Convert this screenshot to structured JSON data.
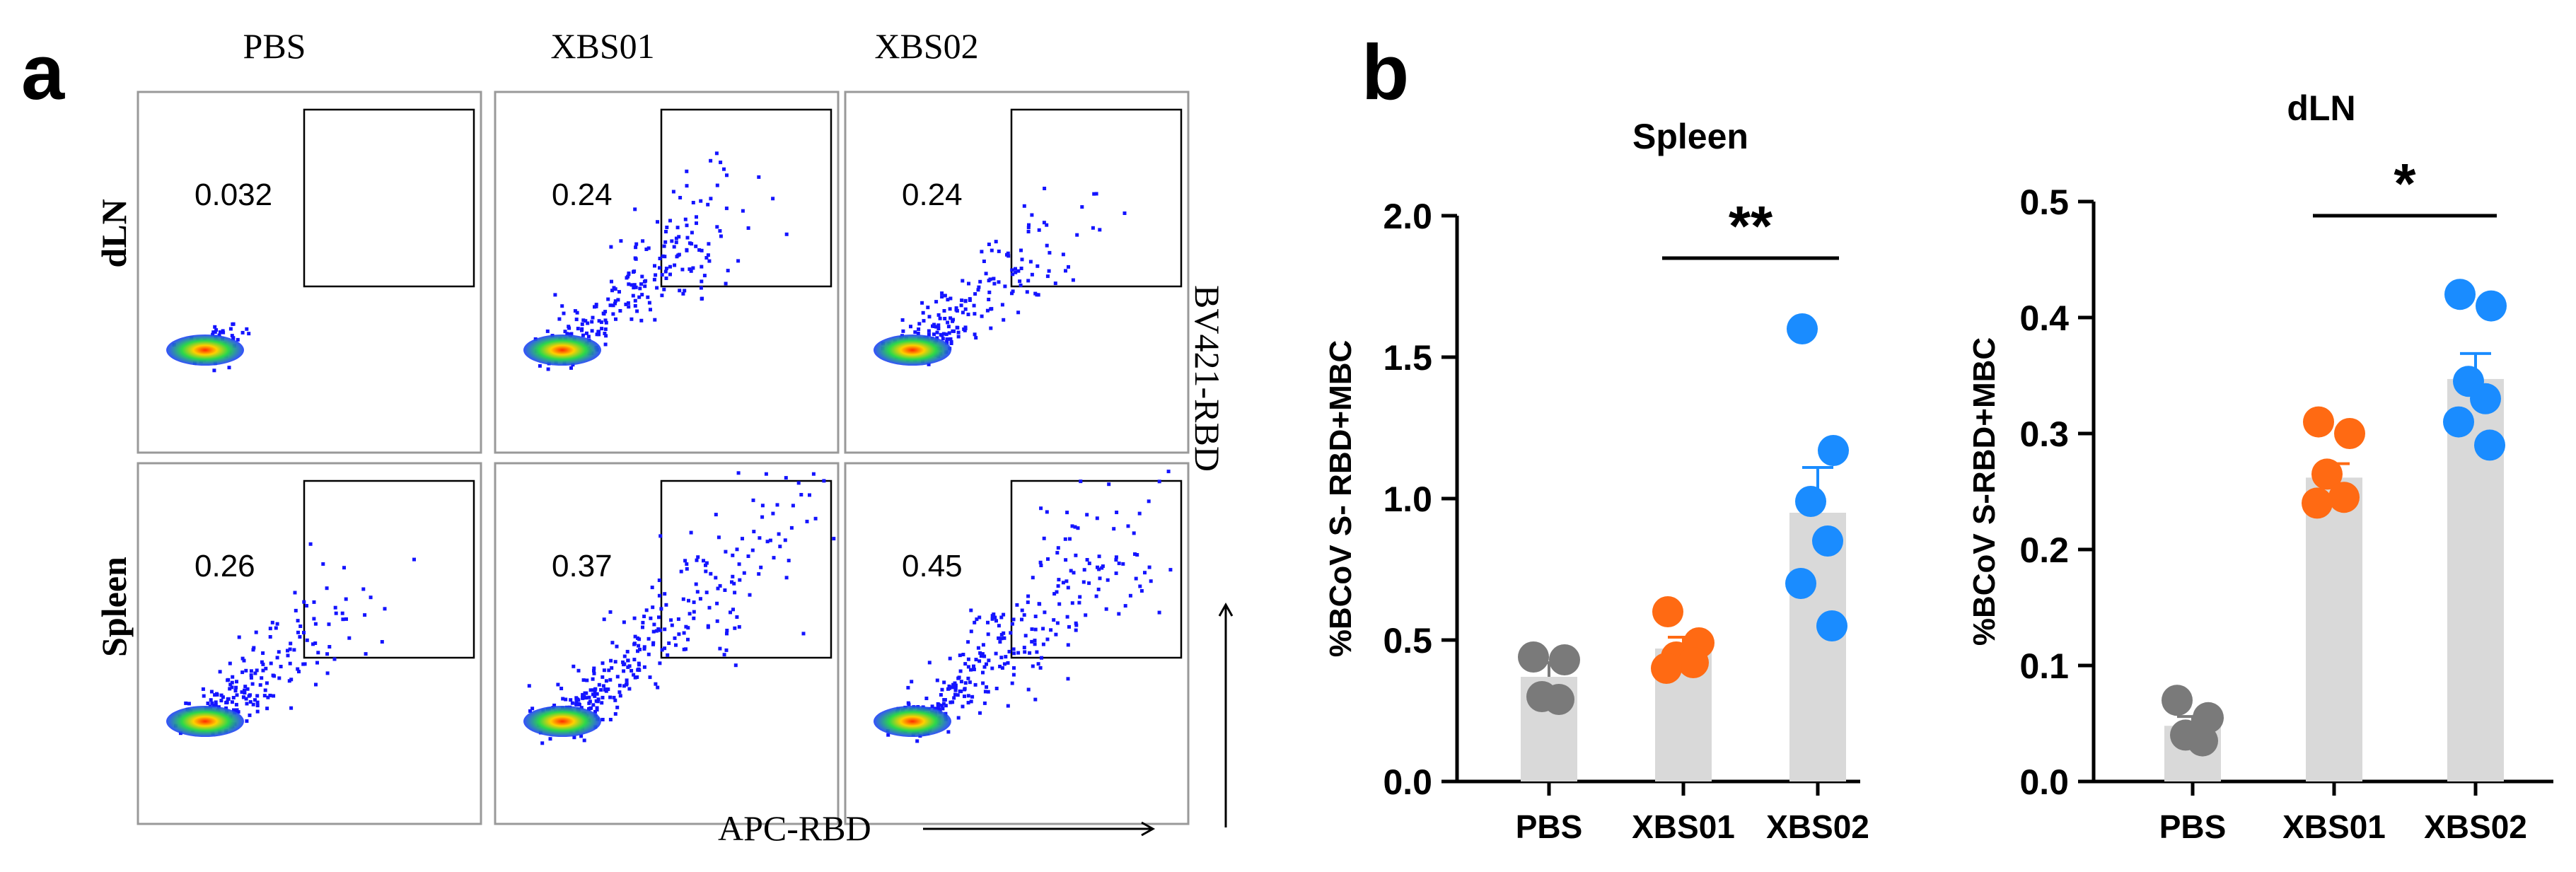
{
  "panel_a": {
    "label": "a",
    "columns": [
      "PBS",
      "XBS01",
      "XBS02"
    ],
    "rows": [
      "dLN",
      "Spleen"
    ],
    "gate_percentages": [
      [
        "0.032",
        "0.24",
        "0.24"
      ],
      [
        "0.26",
        "0.37",
        "0.45"
      ]
    ],
    "x_axis_label": "APC-RBD",
    "y_axis_label": "BV421-RBD"
  },
  "panel_b": {
    "label": "b"
  },
  "colors": {
    "PBS": "#7a7a7a",
    "XBS01": "#ff6a13",
    "XBS02": "#1a8cff",
    "bar": "#d9d9d9"
  },
  "chart_data": [
    {
      "type": "bar",
      "title": "Spleen",
      "categories": [
        "PBS",
        "XBS01",
        "XBS02"
      ],
      "values": [
        0.37,
        0.47,
        0.95
      ],
      "errors": [
        0.05,
        0.04,
        0.16
      ],
      "points": [
        [
          0.44,
          0.43,
          0.3,
          0.29
        ],
        [
          0.6,
          0.49,
          0.44,
          0.42,
          0.4
        ],
        [
          1.6,
          1.17,
          0.99,
          0.85,
          0.7,
          0.55
        ]
      ],
      "ylim": [
        0,
        2.0
      ],
      "yticks": [
        "0.0",
        "0.5",
        "1.0",
        "1.5",
        "2.0"
      ],
      "ylabel": "%BCoV S- RBD+MBC",
      "significance": {
        "from": "XBS01",
        "to": "XBS02",
        "label": "**"
      }
    },
    {
      "type": "bar",
      "title": "dLN",
      "categories": [
        "PBS",
        "XBS01",
        "XBS02"
      ],
      "values": [
        0.048,
        0.262,
        0.347
      ],
      "errors": [
        0.008,
        0.012,
        0.022
      ],
      "points": [
        [
          0.07,
          0.055,
          0.04,
          0.035
        ],
        [
          0.31,
          0.3,
          0.265,
          0.245,
          0.24
        ],
        [
          0.42,
          0.41,
          0.345,
          0.33,
          0.31,
          0.29
        ]
      ],
      "ylim": [
        0,
        0.5
      ],
      "yticks": [
        "0.0",
        "0.1",
        "0.2",
        "0.3",
        "0.4",
        "0.5"
      ],
      "ylabel": "%BCoV S-RBD+MBC",
      "significance": {
        "from": "XBS01",
        "to": "XBS02",
        "label": "*"
      }
    }
  ]
}
